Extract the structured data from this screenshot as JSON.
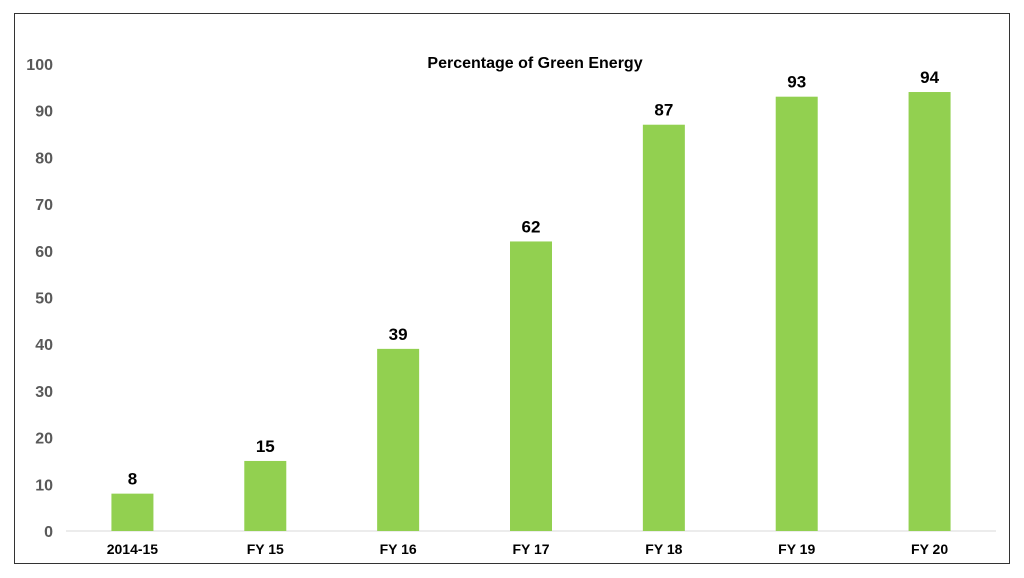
{
  "chart_data": {
    "type": "bar",
    "title": "Percentage of Green Energy",
    "categories": [
      "2014-15",
      "FY 15",
      "FY 16",
      "FY 17",
      "FY 18",
      "FY 19",
      "FY 20"
    ],
    "values": [
      8,
      15,
      39,
      62,
      87,
      93,
      94
    ],
    "data_labels": [
      "8",
      "15",
      "39",
      "62",
      "87",
      "93",
      "94"
    ],
    "xlabel": "",
    "ylabel": "",
    "ylim": [
      0,
      100
    ],
    "yticks": [
      "0",
      "10",
      "20",
      "30",
      "40",
      "50",
      "60",
      "70",
      "80",
      "90",
      "100"
    ],
    "grid": false,
    "legend": "none",
    "bar_color": "#92d050",
    "axis_color": "#d9d9d9"
  }
}
